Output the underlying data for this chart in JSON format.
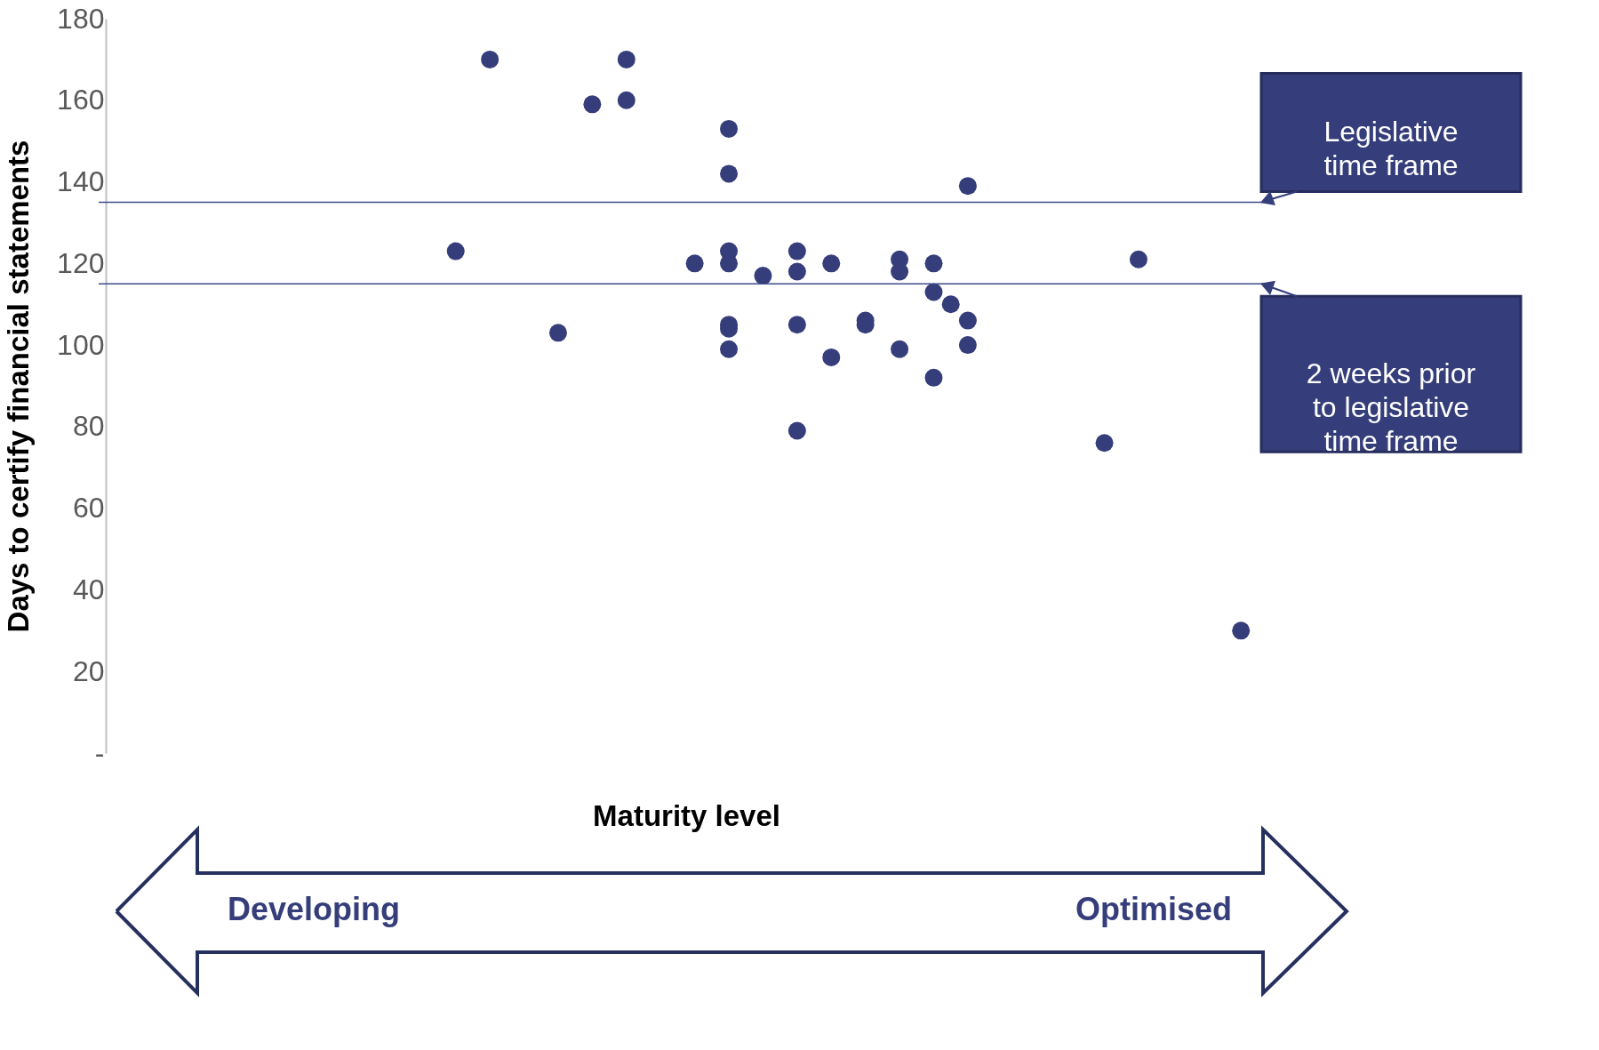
{
  "chart_data": {
    "type": "scatter",
    "xlabel": "Maturity level",
    "ylabel": "Days to certify financial statements",
    "categories": [
      null,
      null,
      null,
      null,
      null,
      null,
      null,
      null,
      null,
      null,
      null,
      null,
      null,
      null,
      null,
      null,
      null,
      null,
      null,
      null,
      null,
      null,
      null,
      null,
      null,
      null,
      null,
      null,
      null,
      null,
      null,
      null,
      null,
      null,
      null,
      null,
      null,
      null,
      null,
      null,
      null,
      null,
      null,
      null,
      null,
      null,
      null,
      null,
      null,
      null,
      null,
      null,
      null,
      null,
      null,
      null,
      null,
      null,
      null,
      null,
      null,
      null,
      null,
      null,
      null,
      null,
      null,
      null
    ],
    "ylim": [
      0,
      180
    ],
    "yticks": [
      {
        "value": 0,
        "label": "-"
      },
      20,
      40,
      60,
      80,
      100,
      120,
      140,
      160,
      180
    ],
    "tick_labels": "y",
    "marker": "circle",
    "series": [
      {
        "color": "#353d7a",
        "values": [
          null,
          null,
          null,
          null,
          null,
          null,
          null,
          null,
          null,
          null,
          null,
          null,
          null,
          null,
          null,
          null,
          null,
          null,
          null,
          null,
          123,
          null,
          170,
          null,
          null,
          null,
          103,
          null,
          159,
          null,
          170,
          null,
          null,
          null,
          120,
          null,
          153,
          null,
          117,
          null,
          123,
          null,
          120,
          null,
          106,
          null,
          121,
          null,
          120,
          110,
          139,
          null,
          null,
          null,
          null,
          null,
          null,
          null,
          76,
          null,
          121,
          null,
          null,
          null,
          null,
          null,
          30,
          null
        ]
      },
      {
        "color": "#353d7a",
        "values": [
          null,
          null,
          null,
          null,
          null,
          null,
          null,
          null,
          null,
          null,
          null,
          null,
          null,
          null,
          null,
          null,
          null,
          null,
          null,
          null,
          null,
          null,
          null,
          null,
          null,
          null,
          null,
          null,
          null,
          null,
          160,
          null,
          null,
          null,
          null,
          null,
          142,
          null,
          null,
          null,
          118,
          null,
          97,
          null,
          105,
          null,
          118,
          null,
          113,
          null,
          106,
          null,
          null,
          null,
          null,
          null,
          null,
          null,
          null,
          null,
          null,
          null,
          null,
          null,
          null,
          null,
          null,
          null
        ]
      },
      {
        "color": "#353d7a",
        "values": [
          null,
          null,
          null,
          null,
          null,
          null,
          null,
          null,
          null,
          null,
          null,
          null,
          null,
          null,
          null,
          null,
          null,
          null,
          null,
          null,
          null,
          null,
          null,
          null,
          null,
          null,
          null,
          null,
          null,
          null,
          null,
          null,
          null,
          null,
          null,
          null,
          123,
          null,
          null,
          null,
          105,
          null,
          null,
          null,
          null,
          null,
          99,
          null,
          92,
          null,
          100,
          null,
          null,
          null,
          null,
          null,
          null,
          null,
          null,
          null,
          null,
          null,
          null,
          null,
          null,
          null,
          null,
          null
        ]
      },
      {
        "color": "#353d7a",
        "values": [
          null,
          null,
          null,
          null,
          null,
          null,
          null,
          null,
          null,
          null,
          null,
          null,
          null,
          null,
          null,
          null,
          null,
          null,
          null,
          null,
          null,
          null,
          null,
          null,
          null,
          null,
          null,
          null,
          null,
          null,
          null,
          null,
          null,
          null,
          null,
          null,
          120,
          null,
          null,
          null,
          79,
          null,
          null,
          null,
          null,
          null,
          null,
          null,
          null,
          null,
          null,
          null,
          null,
          null,
          null,
          null,
          null,
          null,
          null,
          null,
          null,
          null,
          null,
          null,
          null,
          null,
          null,
          null
        ]
      },
      {
        "color": "#353d7a",
        "values": [
          null,
          null,
          null,
          null,
          null,
          null,
          null,
          null,
          null,
          null,
          null,
          null,
          null,
          null,
          null,
          null,
          null,
          null,
          null,
          null,
          null,
          null,
          null,
          null,
          null,
          null,
          null,
          null,
          null,
          null,
          null,
          null,
          null,
          null,
          null,
          null,
          105,
          null,
          null,
          null,
          null,
          null,
          null,
          null,
          null,
          null,
          null,
          null,
          null,
          null,
          null,
          null,
          null,
          null,
          null,
          null,
          null,
          null,
          null,
          null,
          null,
          null,
          null,
          null,
          null,
          null,
          null,
          null
        ]
      },
      {
        "color": "#353d7a",
        "values": [
          null,
          null,
          null,
          null,
          null,
          null,
          null,
          null,
          null,
          null,
          null,
          null,
          null,
          null,
          null,
          null,
          null,
          null,
          null,
          null,
          null,
          null,
          null,
          null,
          null,
          null,
          null,
          null,
          null,
          null,
          null,
          null,
          null,
          null,
          null,
          null,
          104,
          null,
          null,
          null,
          null,
          null,
          null,
          null,
          null,
          null,
          null,
          null,
          null,
          null,
          null,
          null,
          null,
          null,
          null,
          null,
          null,
          null,
          null,
          null,
          null,
          null,
          null,
          null,
          null,
          null,
          null,
          null
        ]
      },
      {
        "color": "#353d7a",
        "values": [
          null,
          null,
          null,
          null,
          null,
          null,
          null,
          null,
          null,
          null,
          null,
          null,
          null,
          null,
          null,
          null,
          null,
          null,
          null,
          null,
          null,
          null,
          null,
          null,
          null,
          null,
          null,
          null,
          null,
          null,
          null,
          null,
          null,
          null,
          null,
          null,
          99,
          null,
          null,
          null,
          null,
          null,
          null,
          null,
          null,
          null,
          null,
          null,
          null,
          null,
          null,
          null,
          null,
          null,
          null,
          null,
          null,
          null,
          null,
          null,
          null,
          null,
          null,
          null,
          null,
          null,
          null,
          null
        ]
      }
    ],
    "ref_lines": [
      {
        "axis": "y",
        "value": 135,
        "label": "Legislative time frame",
        "color": "#3f4a8a"
      },
      {
        "axis": "y",
        "value": 115,
        "label": "2 weeks prior to legislative time frame",
        "color": "#3f4a8a"
      }
    ],
    "annotations": [
      "Developing",
      "Optimised"
    ]
  }
}
